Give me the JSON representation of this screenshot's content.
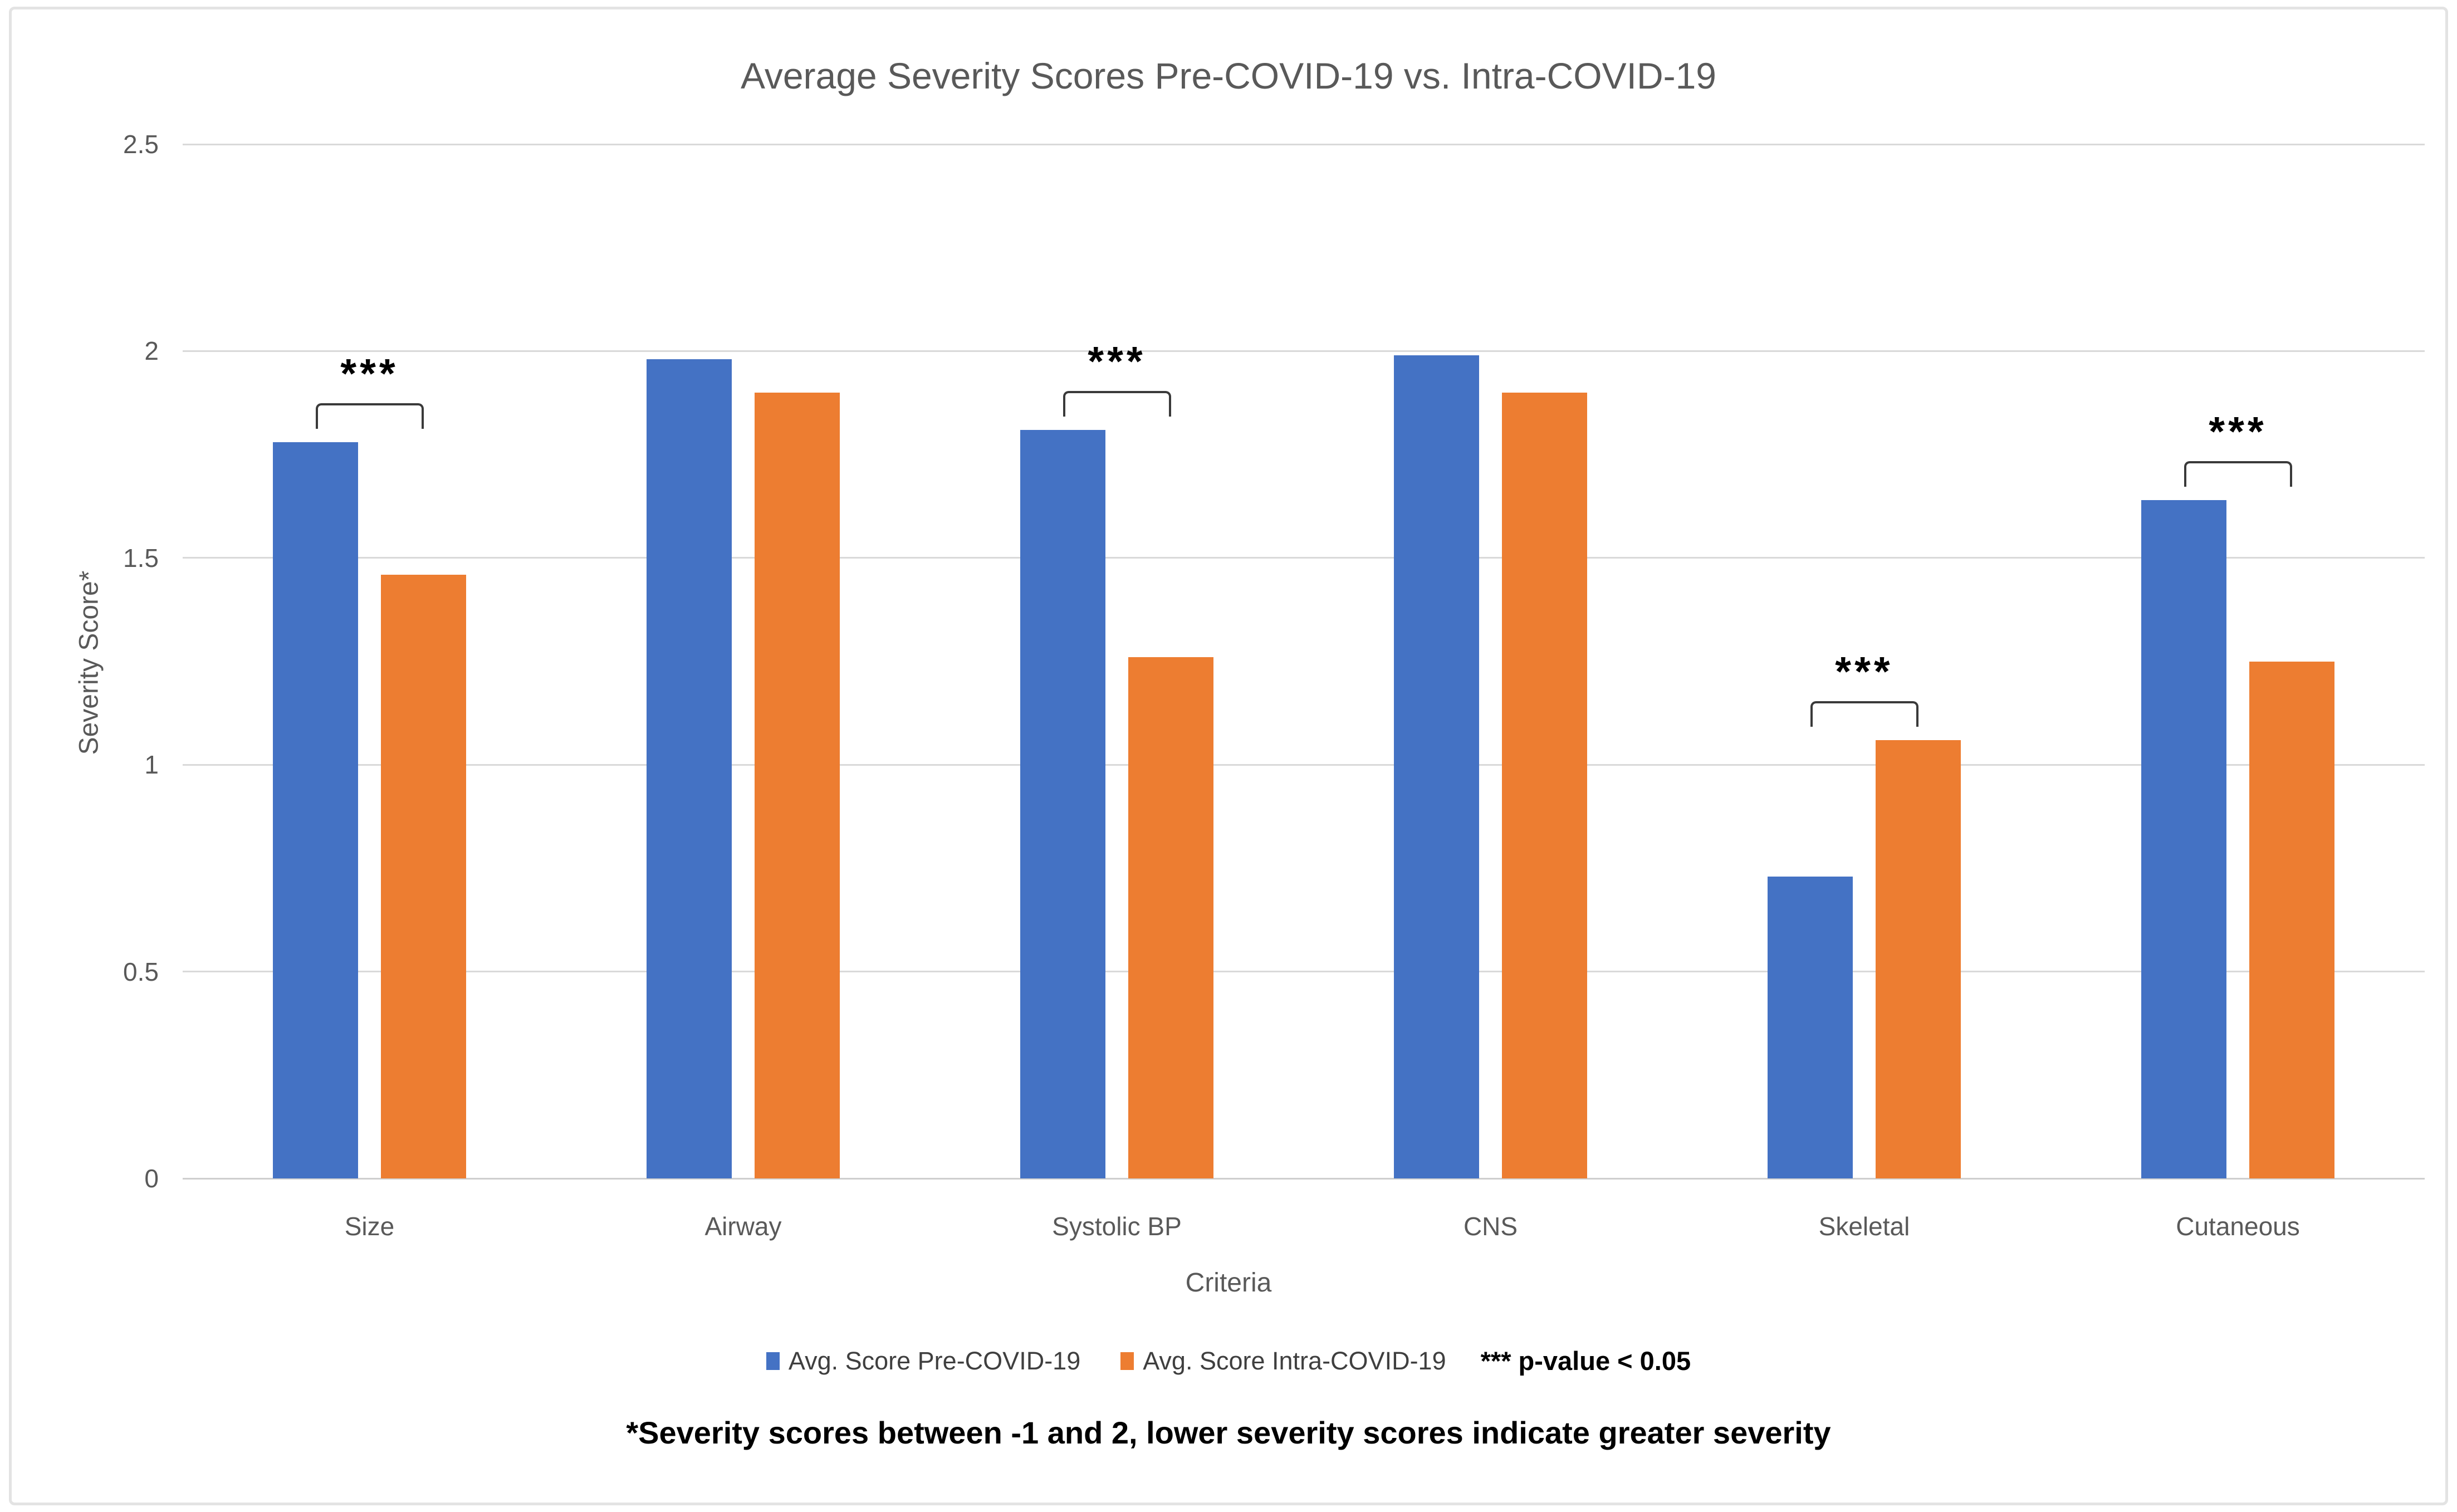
{
  "figure": {
    "background": "#FFFFFF",
    "border_color": "#E3E3E3"
  },
  "chart_data": {
    "type": "bar",
    "title": "Average Severity Scores Pre-COVID-19 vs. Intra-COVID-19",
    "xlabel": "Criteria",
    "ylabel": "Severity Score*",
    "categories": [
      "Size",
      "Airway",
      "Systolic BP",
      "CNS",
      "Skeletal",
      "Cutaneous"
    ],
    "series": [
      {
        "name": "Avg. Score Pre-COVID-19",
        "color": "#4472C4",
        "values": [
          1.78,
          1.98,
          1.81,
          1.99,
          0.73,
          1.64
        ]
      },
      {
        "name": "Avg. Score Intra-COVID-19",
        "color": "#ED7D31",
        "values": [
          1.46,
          1.9,
          1.26,
          1.9,
          1.06,
          1.25
        ]
      }
    ],
    "ylim": [
      0,
      2.5
    ],
    "yticks": [
      0,
      0.5,
      1,
      1.5,
      2,
      2.5
    ],
    "ytick_labels": [
      "0",
      "0.5",
      "1",
      "1.5",
      "2",
      "2.5"
    ],
    "grid": true,
    "legend_position": "bottom",
    "significance": {
      "marker": "***",
      "categories": [
        "Size",
        "Systolic BP",
        "Skeletal",
        "Cutaneous"
      ],
      "note": "*** p-value < 0.05"
    },
    "footnote": "*Severity scores between -1 and 2, lower severity scores indicate greater severity",
    "colors": {
      "grid": "#D9D9D9",
      "axis_line": "#CFCFCF",
      "axis_text": "#595959",
      "legend_text": "#3F3F3F",
      "bracket": "#3A3A3A"
    }
  }
}
